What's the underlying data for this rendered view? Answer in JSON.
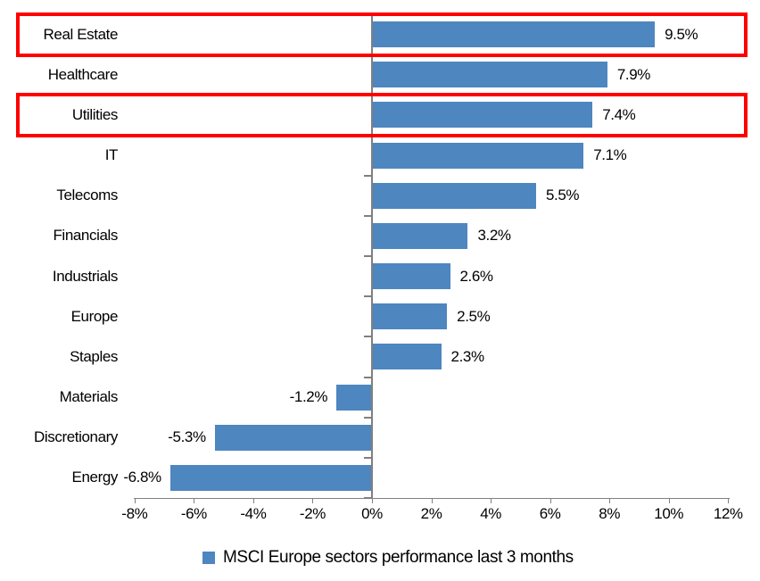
{
  "chart_data": {
    "type": "bar",
    "orientation": "horizontal",
    "title": "",
    "categories": [
      "Real Estate",
      "Healthcare",
      "Utilities",
      "IT",
      "Telecoms",
      "Financials",
      "Industrials",
      "Europe",
      "Staples",
      "Materials",
      "Discretionary",
      "Energy"
    ],
    "values": [
      9.5,
      7.9,
      7.4,
      7.1,
      5.5,
      3.2,
      2.6,
      2.5,
      2.3,
      -1.2,
      -5.3,
      -6.8
    ],
    "value_labels": [
      "9.5%",
      "7.9%",
      "7.4%",
      "7.1%",
      "5.5%",
      "3.2%",
      "2.6%",
      "2.5%",
      "2.3%",
      "-1.2%",
      "-5.3%",
      "-6.8%"
    ],
    "xlabel": "",
    "ylabel": "",
    "xlim": [
      -8,
      12
    ],
    "x_tick_values": [
      -8,
      -6,
      -4,
      -2,
      0,
      2,
      4,
      6,
      8,
      10,
      12
    ],
    "x_tick_labels": [
      "-8%",
      "-6%",
      "-4%",
      "-2%",
      "0%",
      "2%",
      "4%",
      "6%",
      "8%",
      "10%",
      "12%"
    ],
    "grid": false,
    "legend_position": "bottom",
    "legend": "MSCI Europe sectors performance last 3 months",
    "highlighted_categories": [
      "Real Estate",
      "Utilities"
    ],
    "highlighted_rows": [
      0,
      2
    ],
    "colors": {
      "bar": "#4E86C0",
      "highlight": "#FF0000",
      "axis": "#808080",
      "text": "#000000",
      "background": "#FFFFFF"
    }
  }
}
